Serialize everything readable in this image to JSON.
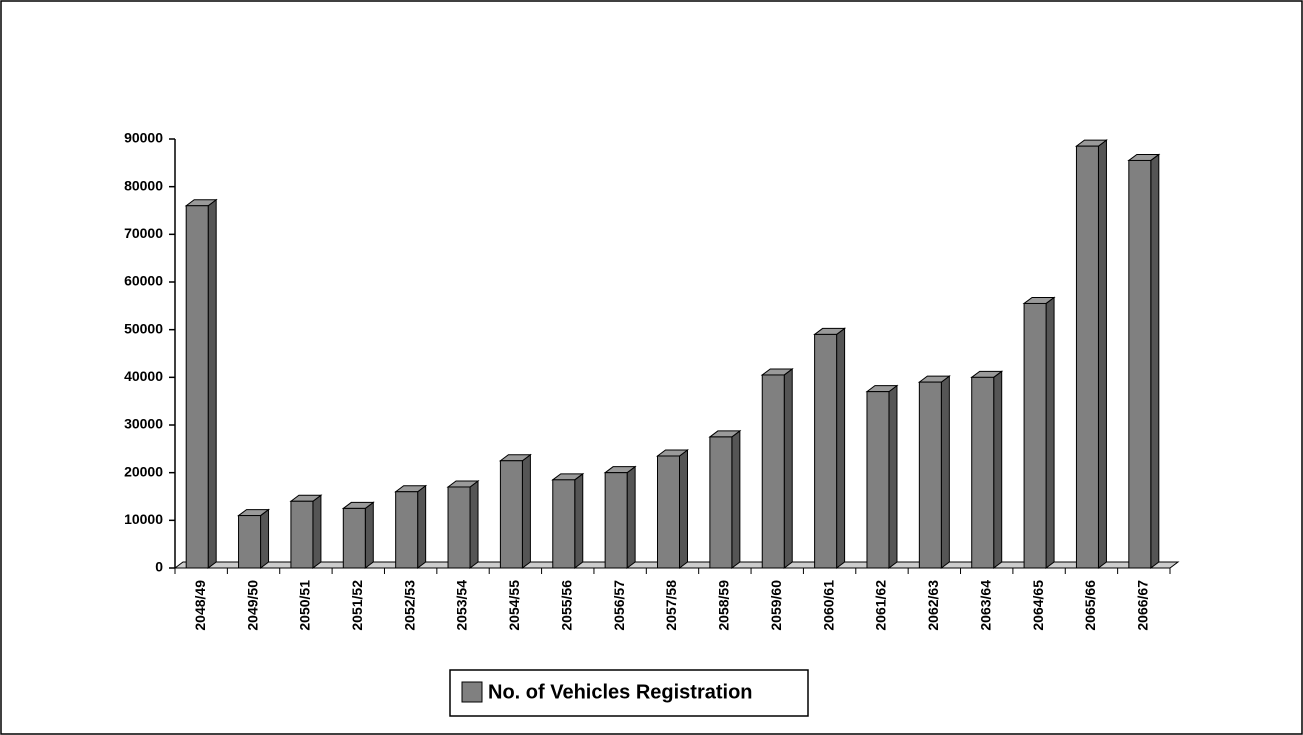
{
  "chart_data": {
    "type": "bar",
    "categories": [
      "2048/49",
      "2049/50",
      "2050/51",
      "2051/52",
      "2052/53",
      "2053/54",
      "2054/55",
      "2055/56",
      "2056/57",
      "2057/58",
      "2058/59",
      "2059/60",
      "2060/61",
      "2061/62",
      "2062/63",
      "2063/64",
      "2064/65",
      "2065/66",
      "2066/67"
    ],
    "series": [
      {
        "name": "No. of Vehicles Registration",
        "color": "#808080",
        "values": [
          76000,
          11000,
          14000,
          12500,
          16000,
          17000,
          22500,
          18500,
          20000,
          23500,
          27500,
          40500,
          49000,
          37000,
          39000,
          40000,
          55500,
          88500,
          85500
        ]
      }
    ],
    "ylim": [
      0,
      90000
    ],
    "yticks": [
      0,
      10000,
      20000,
      30000,
      40000,
      50000,
      60000,
      70000,
      80000,
      90000
    ],
    "legend": "bottom"
  }
}
